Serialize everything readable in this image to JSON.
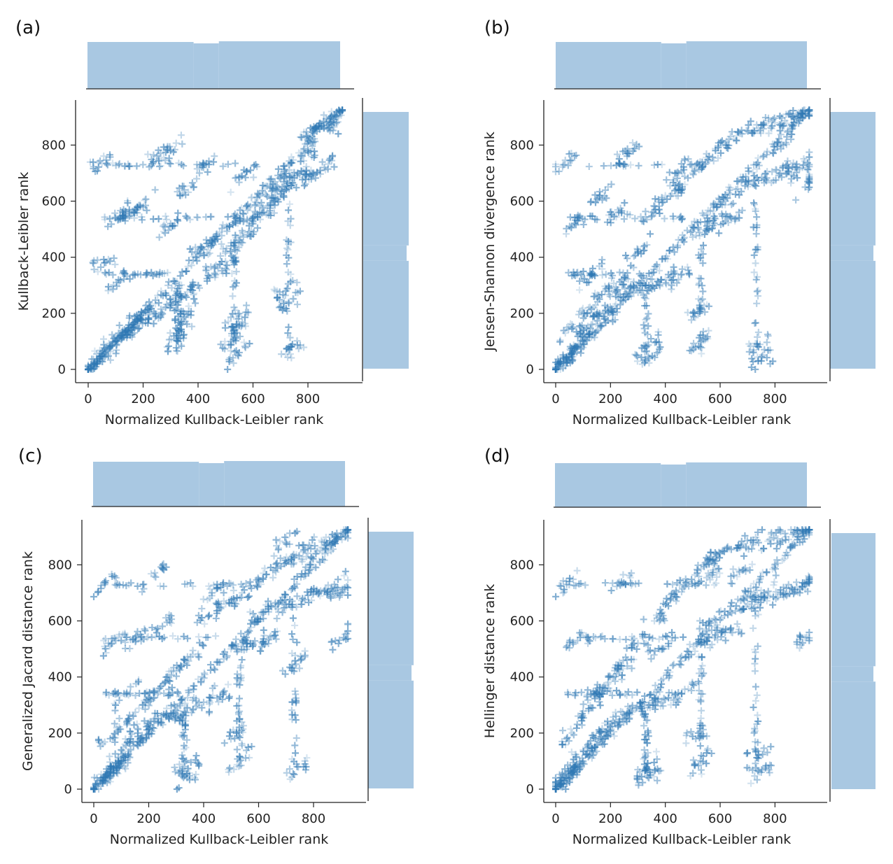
{
  "colors": {
    "marker": "#2e78b4",
    "hist": "#a9c8e2"
  },
  "chart_data": [
    {
      "type": "scatter",
      "panel_label": "(a)",
      "xlabel": "Normalized Kullback-Leibler rank",
      "ylabel": "Kullback-Leibler rank",
      "xlim": [
        -40,
        970
      ],
      "ylim": [
        -30,
        960
      ],
      "xticks": [
        0,
        200,
        400,
        600,
        800
      ],
      "yticks": [
        0,
        200,
        400,
        600,
        800
      ],
      "marker": "+",
      "marginal_histograms": true,
      "pattern": "identity-heavy",
      "x": [
        0,
        20,
        40,
        60,
        80,
        100,
        120,
        150,
        180,
        200,
        50,
        100,
        150,
        200,
        250,
        300,
        350,
        400,
        450,
        500,
        550,
        600,
        650,
        700,
        750,
        800,
        850,
        900,
        920,
        880,
        860,
        820,
        760,
        700,
        640,
        580,
        520,
        460,
        400,
        340,
        280,
        220,
        160,
        110,
        60,
        330,
        340,
        350,
        520,
        530,
        540,
        550,
        720,
        730,
        740,
        300,
        420,
        560,
        680,
        780
      ],
      "y": [
        0,
        20,
        40,
        60,
        80,
        100,
        120,
        150,
        180,
        200,
        735,
        540,
        560,
        580,
        760,
        780,
        640,
        420,
        460,
        360,
        540,
        540,
        620,
        640,
        660,
        830,
        870,
        900,
        920,
        850,
        720,
        700,
        690,
        680,
        560,
        480,
        440,
        360,
        300,
        260,
        220,
        180,
        140,
        320,
        380,
        120,
        160,
        200,
        100,
        140,
        180,
        60,
        280,
        240,
        80,
        520,
        720,
        690,
        600,
        760
      ]
    },
    {
      "type": "scatter",
      "panel_label": "(b)",
      "xlabel": "Normalized Kullback-Leibler rank",
      "ylabel": "Jensen-Shannon divergence rank",
      "xlim": [
        -40,
        970
      ],
      "ylim": [
        -30,
        960
      ],
      "xticks": [
        0,
        200,
        400,
        600,
        800
      ],
      "yticks": [
        0,
        200,
        400,
        600,
        800
      ],
      "marker": "+",
      "marginal_histograms": true,
      "pattern": "banded",
      "x": [
        0,
        20,
        40,
        60,
        80,
        100,
        30,
        80,
        130,
        180,
        230,
        60,
        120,
        180,
        240,
        300,
        350,
        400,
        450,
        500,
        560,
        620,
        680,
        740,
        800,
        860,
        900,
        920,
        880,
        820,
        760,
        700,
        640,
        580,
        520,
        460,
        400,
        340,
        280,
        220,
        160,
        100,
        330,
        340,
        520,
        530,
        740,
        750,
        900,
        910,
        160,
        260,
        440,
        620,
        820
      ],
      "y": [
        0,
        20,
        40,
        60,
        80,
        100,
        730,
        530,
        340,
        180,
        560,
        160,
        220,
        280,
        320,
        420,
        560,
        620,
        640,
        700,
        760,
        800,
        840,
        860,
        880,
        900,
        910,
        920,
        720,
        700,
        680,
        660,
        540,
        520,
        500,
        340,
        320,
        300,
        280,
        260,
        200,
        140,
        80,
        40,
        200,
        100,
        80,
        30,
        720,
        650,
        620,
        770,
        700,
        600,
        800
      ]
    },
    {
      "type": "scatter",
      "panel_label": "(c)",
      "xlabel": "Normalized Kullback-Leibler rank",
      "ylabel": "Generalized Jacard distance rank",
      "xlim": [
        -40,
        970
      ],
      "ylim": [
        -30,
        960
      ],
      "xticks": [
        0,
        200,
        400,
        600,
        800
      ],
      "yticks": [
        0,
        200,
        400,
        600,
        800
      ],
      "marker": "+",
      "marginal_histograms": true,
      "pattern": "banded",
      "x": [
        0,
        20,
        40,
        60,
        80,
        100,
        40,
        80,
        120,
        160,
        220,
        60,
        120,
        180,
        240,
        300,
        360,
        420,
        480,
        540,
        600,
        660,
        720,
        780,
        840,
        900,
        920,
        880,
        820,
        760,
        700,
        640,
        580,
        520,
        460,
        400,
        340,
        280,
        220,
        160,
        100,
        330,
        340,
        520,
        530,
        730,
        740,
        900,
        910,
        250,
        430,
        610,
        800,
        150,
        700
      ],
      "y": [
        0,
        20,
        40,
        60,
        80,
        100,
        730,
        530,
        340,
        170,
        760,
        180,
        240,
        300,
        360,
        420,
        480,
        620,
        660,
        700,
        740,
        780,
        820,
        860,
        880,
        900,
        920,
        720,
        700,
        680,
        660,
        540,
        520,
        500,
        330,
        310,
        290,
        270,
        250,
        200,
        140,
        80,
        40,
        200,
        100,
        440,
        80,
        700,
        540,
        580,
        700,
        630,
        820,
        540,
        880
      ]
    },
    {
      "type": "scatter",
      "panel_label": "(d)",
      "xlabel": "Normalized Kullback-Leibler rank",
      "ylabel": "Hellinger distance rank",
      "xlim": [
        -40,
        970
      ],
      "ylim": [
        -30,
        960
      ],
      "xticks": [
        0,
        200,
        400,
        600,
        800
      ],
      "yticks": [
        0,
        200,
        400,
        600,
        800
      ],
      "marker": "+",
      "marginal_histograms": true,
      "pattern": "steep",
      "x": [
        0,
        20,
        40,
        60,
        80,
        100,
        40,
        80,
        140,
        180,
        240,
        60,
        120,
        180,
        240,
        300,
        360,
        420,
        480,
        540,
        600,
        660,
        720,
        780,
        840,
        900,
        920,
        880,
        820,
        760,
        700,
        640,
        580,
        520,
        460,
        400,
        340,
        280,
        220,
        160,
        100,
        330,
        340,
        520,
        530,
        740,
        750,
        900,
        910,
        200,
        380,
        560,
        760,
        560,
        680
      ],
      "y": [
        0,
        20,
        40,
        60,
        80,
        100,
        730,
        530,
        340,
        180,
        740,
        200,
        280,
        360,
        440,
        520,
        600,
        680,
        740,
        800,
        840,
        860,
        880,
        890,
        900,
        910,
        920,
        720,
        700,
        680,
        660,
        560,
        540,
        520,
        340,
        320,
        300,
        280,
        260,
        200,
        140,
        80,
        40,
        200,
        100,
        120,
        60,
        720,
        540,
        400,
        500,
        600,
        700,
        760,
        780
      ]
    }
  ]
}
